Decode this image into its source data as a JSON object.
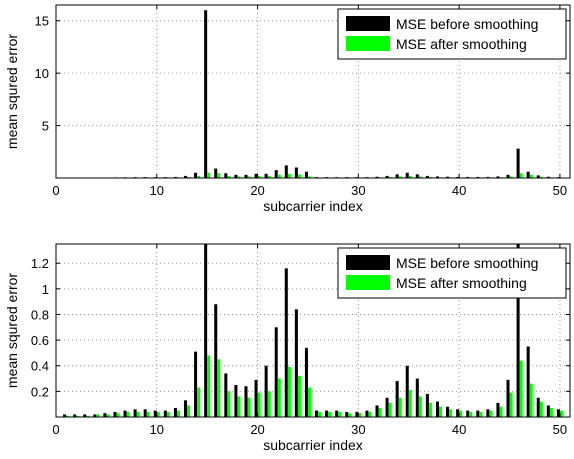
{
  "colors": {
    "before": "#000000",
    "after": "#00ff00",
    "grid": "#9a9a9a",
    "frame": "#000000"
  },
  "chart_data": [
    {
      "type": "bar",
      "xlabel": "subcarrier index",
      "ylabel": "mean squred error",
      "xlim": [
        0,
        51
      ],
      "ylim": [
        0,
        16.5
      ],
      "xticks": [
        0,
        10,
        20,
        30,
        40,
        50
      ],
      "yticks": [
        5,
        10,
        15
      ],
      "grid": true,
      "legend_position": "top-right",
      "x": [
        1,
        2,
        3,
        4,
        5,
        6,
        7,
        8,
        9,
        10,
        11,
        12,
        13,
        14,
        15,
        16,
        17,
        18,
        19,
        20,
        21,
        22,
        23,
        24,
        25,
        26,
        27,
        28,
        29,
        30,
        31,
        32,
        33,
        34,
        35,
        36,
        37,
        38,
        39,
        40,
        41,
        42,
        43,
        44,
        45,
        46,
        47,
        48,
        49,
        50
      ],
      "series": [
        {
          "name": "MSE before smoothing",
          "values": [
            0.05,
            0.05,
            0.05,
            0.05,
            0.05,
            0.06,
            0.07,
            0.08,
            0.08,
            0.08,
            0.08,
            0.1,
            0.2,
            0.5,
            16.0,
            0.9,
            0.45,
            0.3,
            0.3,
            0.4,
            0.4,
            0.75,
            1.2,
            1.0,
            0.6,
            0.08,
            0.08,
            0.08,
            0.08,
            0.08,
            0.08,
            0.12,
            0.2,
            0.35,
            0.5,
            0.35,
            0.2,
            0.15,
            0.12,
            0.1,
            0.1,
            0.1,
            0.1,
            0.15,
            0.3,
            2.8,
            0.6,
            0.25,
            0.12,
            0.08
          ]
        },
        {
          "name": "MSE after smoothing",
          "values": [
            0.02,
            0.02,
            0.02,
            0.02,
            0.02,
            0.03,
            0.04,
            0.05,
            0.05,
            0.05,
            0.05,
            0.06,
            0.1,
            0.2,
            0.5,
            0.45,
            0.2,
            0.15,
            0.15,
            0.2,
            0.2,
            0.3,
            0.4,
            0.35,
            0.15,
            0.04,
            0.04,
            0.04,
            0.04,
            0.04,
            0.04,
            0.06,
            0.1,
            0.15,
            0.2,
            0.15,
            0.1,
            0.07,
            0.06,
            0.05,
            0.05,
            0.05,
            0.05,
            0.07,
            0.15,
            0.45,
            0.3,
            0.12,
            0.06,
            0.04
          ]
        }
      ]
    },
    {
      "type": "bar",
      "xlabel": "subcarrier index",
      "ylabel": "mean squred error",
      "xlim": [
        0,
        51
      ],
      "ylim": [
        0,
        1.35
      ],
      "xticks": [
        0,
        10,
        20,
        30,
        40,
        50
      ],
      "yticks": [
        0.2,
        0.4,
        0.6,
        0.8,
        1,
        1.2
      ],
      "ytick_labels": [
        "0.2",
        "0.4",
        "0.6",
        "0.8",
        "1",
        "1.2"
      ],
      "grid": true,
      "legend_position": "top-right",
      "x": [
        1,
        2,
        3,
        4,
        5,
        6,
        7,
        8,
        9,
        10,
        11,
        12,
        13,
        14,
        15,
        16,
        17,
        18,
        19,
        20,
        21,
        22,
        23,
        24,
        25,
        26,
        27,
        28,
        29,
        30,
        31,
        32,
        33,
        34,
        35,
        36,
        37,
        38,
        39,
        40,
        41,
        42,
        43,
        44,
        45,
        46,
        47,
        48,
        49,
        50
      ],
      "series": [
        {
          "name": "MSE before smoothing",
          "values": [
            0.02,
            0.02,
            0.02,
            0.02,
            0.03,
            0.04,
            0.05,
            0.06,
            0.06,
            0.05,
            0.05,
            0.07,
            0.13,
            0.51,
            1.35,
            0.88,
            0.34,
            0.25,
            0.24,
            0.29,
            0.4,
            0.7,
            1.16,
            0.84,
            0.54,
            0.05,
            0.05,
            0.05,
            0.04,
            0.04,
            0.05,
            0.09,
            0.15,
            0.28,
            0.4,
            0.3,
            0.18,
            0.12,
            0.08,
            0.06,
            0.05,
            0.05,
            0.06,
            0.11,
            0.29,
            1.35,
            0.55,
            0.15,
            0.09,
            0.06
          ]
        },
        {
          "name": "MSE after smoothing",
          "values": [
            0.01,
            0.01,
            0.01,
            0.02,
            0.02,
            0.03,
            0.04,
            0.04,
            0.04,
            0.04,
            0.04,
            0.05,
            0.09,
            0.23,
            0.48,
            0.45,
            0.2,
            0.16,
            0.15,
            0.19,
            0.2,
            0.3,
            0.39,
            0.32,
            0.23,
            0.04,
            0.04,
            0.04,
            0.03,
            0.03,
            0.04,
            0.07,
            0.11,
            0.15,
            0.21,
            0.16,
            0.11,
            0.08,
            0.06,
            0.05,
            0.04,
            0.04,
            0.05,
            0.08,
            0.19,
            0.44,
            0.26,
            0.12,
            0.07,
            0.05
          ]
        }
      ]
    }
  ]
}
